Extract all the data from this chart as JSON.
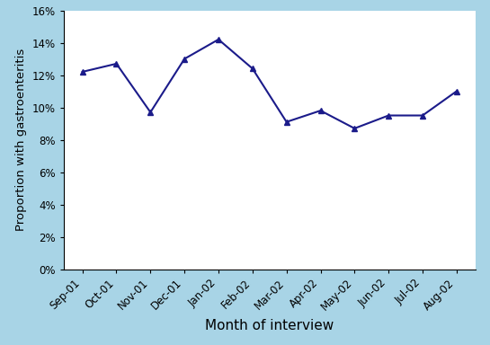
{
  "months": [
    "Sep-01",
    "Oct-01",
    "Nov-01",
    "Dec-01",
    "Jan-02",
    "Feb-02",
    "Mar-02",
    "Apr-02",
    "May-02",
    "Jun-02",
    "Jul-02",
    "Aug-02"
  ],
  "values": [
    0.122,
    0.127,
    0.097,
    0.13,
    0.142,
    0.124,
    0.091,
    0.098,
    0.087,
    0.095,
    0.095,
    0.11
  ],
  "line_color": "#1B1B8A",
  "marker": "^",
  "marker_size": 4,
  "line_width": 1.5,
  "ylim": [
    0,
    0.16
  ],
  "yticks": [
    0.0,
    0.02,
    0.04,
    0.06,
    0.08,
    0.1,
    0.12,
    0.14,
    0.16
  ],
  "xlabel": "Month of interview",
  "ylabel": "Proportion with gastroenteritis",
  "background_color": "#A8D4E6",
  "plot_background_color": "#FFFFFF",
  "xlabel_fontsize": 11,
  "ylabel_fontsize": 9.5,
  "tick_fontsize": 8.5
}
